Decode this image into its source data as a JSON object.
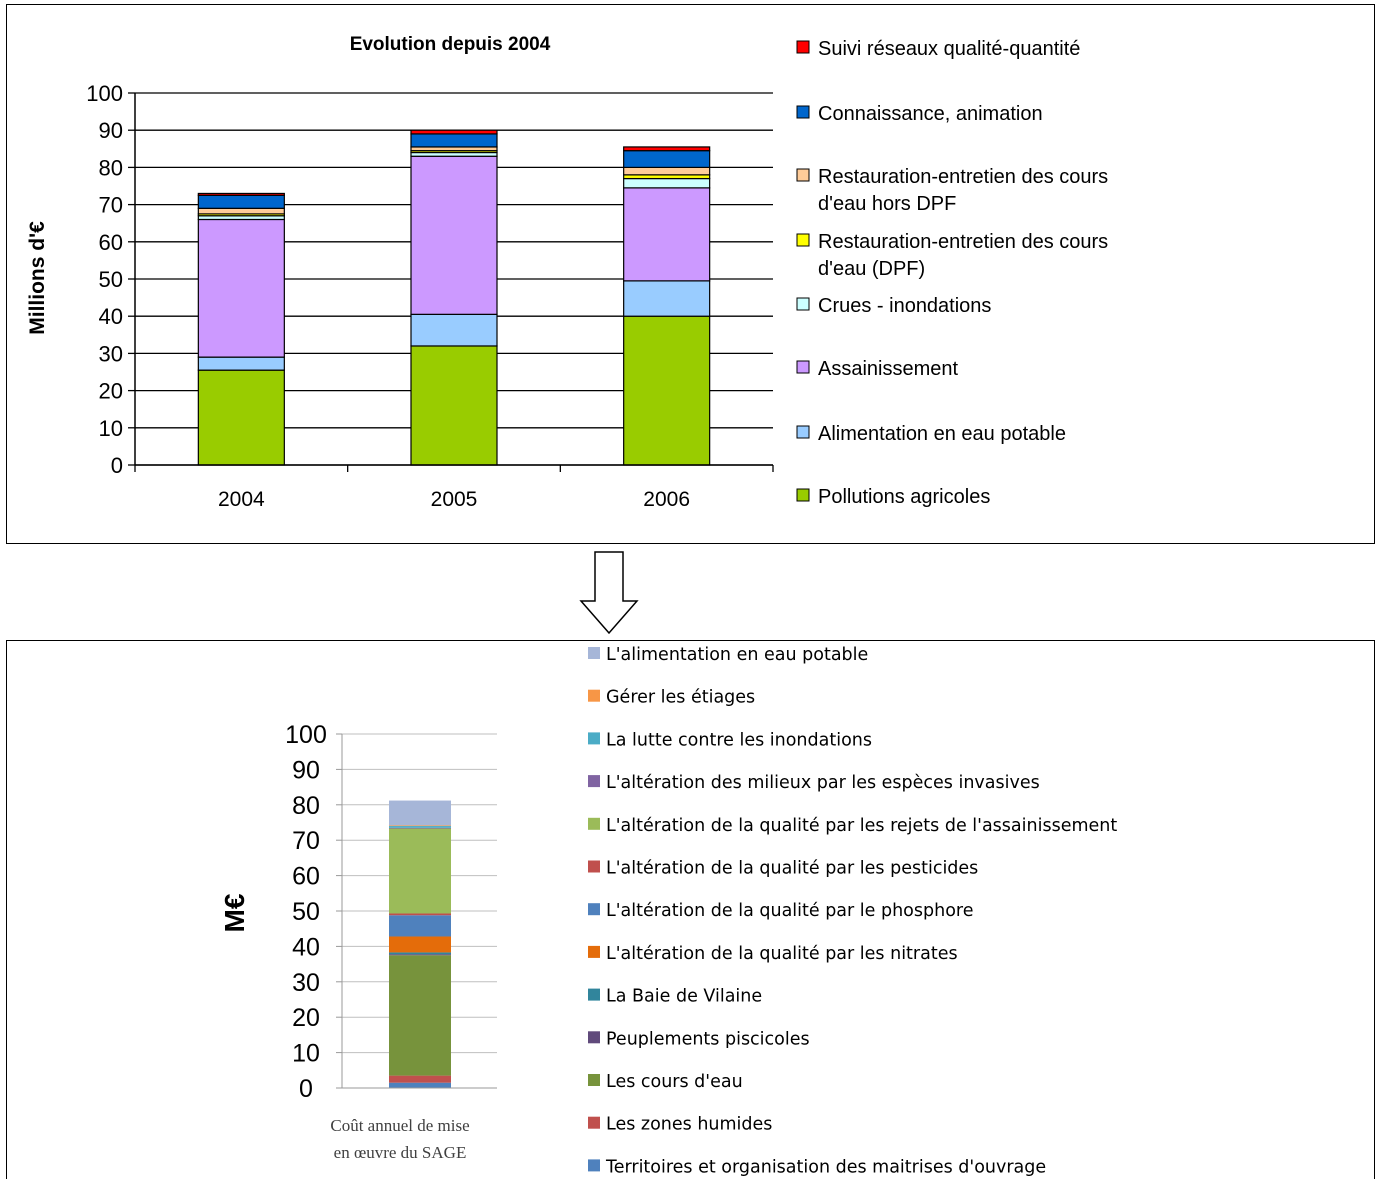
{
  "chart_data": [
    {
      "type": "bar",
      "stacked": true,
      "title": "Evolution depuis 2004",
      "xlabel": "",
      "ylabel": "Millions d'€",
      "ylim": [
        0,
        100
      ],
      "yticks": [
        0,
        10,
        20,
        30,
        40,
        50,
        60,
        70,
        80,
        90,
        100
      ],
      "categories": [
        "2004",
        "2005",
        "2006"
      ],
      "grid": "horizontal",
      "legend_position": "right",
      "series": [
        {
          "name": "Pollutions agricoles",
          "color": "#99CC00",
          "values": [
            25.5,
            32,
            40
          ]
        },
        {
          "name": "Alimentation en eau potable",
          "color": "#99CCFF",
          "values": [
            3.5,
            8.5,
            9.5
          ]
        },
        {
          "name": "Assainissement",
          "color": "#CC99FF",
          "values": [
            37,
            42.5,
            25
          ]
        },
        {
          "name": "Crues - inondations",
          "color": "#CCFFFF",
          "values": [
            1,
            1,
            2.5
          ]
        },
        {
          "name": "Restauration-entretien des cours d'eau (DPF)",
          "color": "#FFFF00",
          "values": [
            0.5,
            0.5,
            1
          ]
        },
        {
          "name": "Restauration-entretien des cours d'eau hors DPF",
          "color": "#FFCC99",
          "values": [
            1.5,
            1,
            2
          ]
        },
        {
          "name": "Connaissance, animation",
          "color": "#0066CC",
          "values": [
            3.5,
            3.5,
            4.5
          ]
        },
        {
          "name": "Suivi réseaux qualité-quantité",
          "color": "#FF0000",
          "values": [
            0.5,
            1,
            1
          ]
        }
      ]
    },
    {
      "type": "bar",
      "stacked": true,
      "title": "",
      "xlabel": "",
      "ylabel": "M€",
      "ylim": [
        0,
        100
      ],
      "yticks": [
        0,
        10,
        20,
        30,
        40,
        50,
        60,
        70,
        80,
        90,
        100
      ],
      "categories": [
        "Coût annuel de mise en œuvre du SAGE"
      ],
      "grid": "horizontal",
      "legend_position": "right",
      "series": [
        {
          "name": "Territoires et organisation des maitrises d'ouvrage",
          "color": "#4F81BD",
          "values": [
            1.5
          ]
        },
        {
          "name": "Les zones humides",
          "color": "#C0504D",
          "values": [
            2
          ]
        },
        {
          "name": "Les cours d'eau",
          "color": "#77933C",
          "values": [
            34
          ]
        },
        {
          "name": "Peuplements piscicoles",
          "color": "#604A7B",
          "values": [
            0.3
          ]
        },
        {
          "name": "La Baie de Vilaine",
          "color": "#31859C",
          "values": [
            0.5
          ]
        },
        {
          "name": "L'altération de la qualité par les nitrates",
          "color": "#E46C0A",
          "values": [
            4.5
          ]
        },
        {
          "name": "L'altération de la qualité par le phosphore",
          "color": "#4F81BD",
          "values": [
            6
          ]
        },
        {
          "name": "L'altération de la qualité par les pesticides",
          "color": "#C0504D",
          "values": [
            0.5
          ]
        },
        {
          "name": "L'altération de la qualité par les rejets de l'assainissement",
          "color": "#9BBB59",
          "values": [
            24
          ]
        },
        {
          "name": "L'altération des milieux par les espèces invasives",
          "color": "#8064A2",
          "values": [
            0.2
          ]
        },
        {
          "name": "La lutte contre les inondations",
          "color": "#4BACC6",
          "values": [
            0.5
          ]
        },
        {
          "name": "Gérer les étiages",
          "color": "#F79646",
          "values": [
            0.2
          ]
        },
        {
          "name": "L'alimentation en eau potable",
          "color": "#A6B6D8",
          "values": [
            7
          ]
        }
      ]
    }
  ]
}
